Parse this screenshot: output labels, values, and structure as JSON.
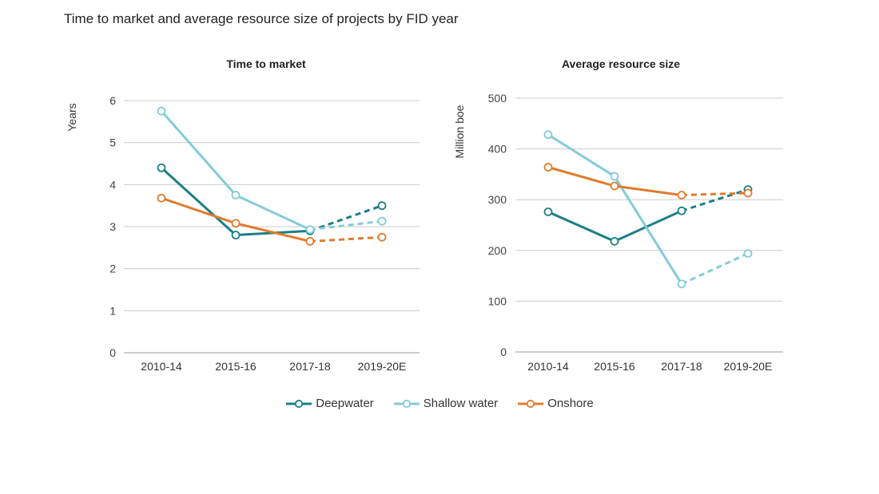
{
  "title": "Time to market and average resource size of projects by FID year",
  "colors": {
    "Deepwater": "#1a7f86",
    "Shallow water": "#84cbd9",
    "Onshore": "#e07c2e",
    "grid": "#cccccc"
  },
  "legend": [
    "Deepwater",
    "Shallow water",
    "Onshore"
  ],
  "chart_data": [
    {
      "type": "line",
      "title": "Time to market",
      "xlabel": "",
      "ylabel": "Years",
      "categories": [
        "2010-14",
        "2015-16",
        "2017-18",
        "2019-20E"
      ],
      "ylim": [
        0,
        6
      ],
      "yticks": [
        0,
        1,
        2,
        3,
        4,
        5,
        6
      ],
      "dashed_from_index": 2,
      "series": [
        {
          "name": "Deepwater",
          "values": [
            4.4,
            2.8,
            2.9,
            3.5
          ]
        },
        {
          "name": "Shallow water",
          "values": [
            5.75,
            3.75,
            2.93,
            3.13
          ]
        },
        {
          "name": "Onshore",
          "values": [
            3.68,
            3.08,
            2.65,
            2.75
          ]
        }
      ]
    },
    {
      "type": "line",
      "title": "Average resource size",
      "xlabel": "",
      "ylabel": "Million boe",
      "categories": [
        "2010-14",
        "2015-16",
        "2017-18",
        "2019-20E"
      ],
      "ylim": [
        0,
        500
      ],
      "yticks": [
        0,
        100,
        200,
        300,
        400,
        500
      ],
      "dashed_from_index": 2,
      "series": [
        {
          "name": "Deepwater",
          "values": [
            276,
            218,
            278,
            320
          ]
        },
        {
          "name": "Shallow water",
          "values": [
            428,
            346,
            134,
            194
          ]
        },
        {
          "name": "Onshore",
          "values": [
            364,
            327,
            309,
            313
          ]
        }
      ]
    }
  ]
}
